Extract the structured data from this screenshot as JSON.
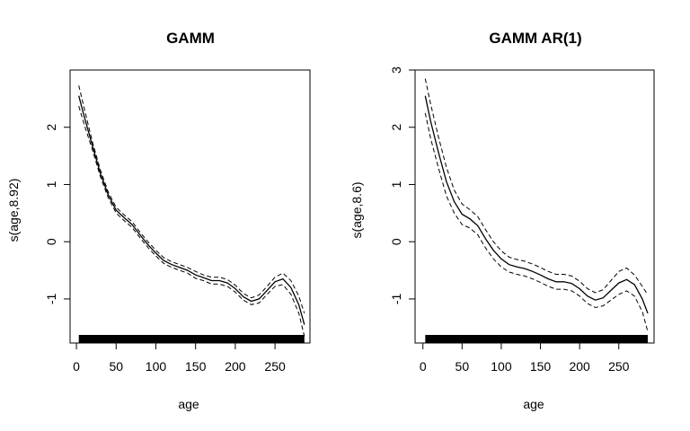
{
  "chart_data": [
    {
      "type": "line",
      "title": "GAMM",
      "xlabel": "age",
      "ylabel": "s(age,8.92)",
      "xlim": [
        -8,
        294
      ],
      "ylim": [
        -1.77,
        3.0
      ],
      "xticks": [
        0,
        50,
        100,
        150,
        200,
        250
      ],
      "yticks": [
        -1,
        0,
        1,
        2
      ],
      "grid": false,
      "x": [
        3,
        10,
        20,
        30,
        40,
        50,
        60,
        70,
        80,
        90,
        100,
        110,
        120,
        130,
        140,
        150,
        160,
        170,
        180,
        190,
        200,
        210,
        220,
        230,
        240,
        250,
        260,
        270,
        280,
        287
      ],
      "series": [
        {
          "values": [
            2.55,
            2.18,
            1.68,
            1.2,
            0.82,
            0.55,
            0.42,
            0.3,
            0.12,
            -0.05,
            -0.2,
            -0.33,
            -0.4,
            -0.45,
            -0.5,
            -0.58,
            -0.63,
            -0.68,
            -0.68,
            -0.72,
            -0.82,
            -0.96,
            -1.04,
            -1.0,
            -0.85,
            -0.7,
            -0.65,
            -0.8,
            -1.1,
            -1.45
          ]
        },
        {
          "values": [
            2.73,
            2.32,
            1.75,
            1.26,
            0.87,
            0.6,
            0.47,
            0.35,
            0.17,
            0.0,
            -0.15,
            -0.28,
            -0.35,
            -0.4,
            -0.45,
            -0.52,
            -0.58,
            -0.62,
            -0.62,
            -0.66,
            -0.76,
            -0.9,
            -0.98,
            -0.93,
            -0.78,
            -0.62,
            -0.55,
            -0.68,
            -0.95,
            -1.25
          ]
        },
        {
          "values": [
            2.37,
            2.04,
            1.61,
            1.14,
            0.77,
            0.5,
            0.37,
            0.25,
            0.07,
            -0.1,
            -0.25,
            -0.38,
            -0.45,
            -0.5,
            -0.55,
            -0.64,
            -0.68,
            -0.74,
            -0.74,
            -0.78,
            -0.88,
            -1.02,
            -1.1,
            -1.07,
            -0.92,
            -0.78,
            -0.75,
            -0.92,
            -1.25,
            -1.65
          ]
        }
      ],
      "rug": [
        3,
        287
      ]
    },
    {
      "type": "line",
      "title": "GAMM AR(1)",
      "xlabel": "age",
      "ylabel": "s(age,8.6)",
      "xlim": [
        -10,
        295
      ],
      "ylim": [
        -1.77,
        3.0
      ],
      "xticks": [
        0,
        50,
        100,
        150,
        200,
        250
      ],
      "yticks": [
        -1,
        0,
        1,
        2,
        3
      ],
      "grid": false,
      "x": [
        3,
        10,
        20,
        30,
        40,
        50,
        60,
        70,
        80,
        90,
        100,
        110,
        120,
        130,
        140,
        150,
        160,
        170,
        180,
        190,
        200,
        210,
        220,
        230,
        240,
        250,
        260,
        270,
        280,
        287
      ],
      "series": [
        {
          "values": [
            2.55,
            2.1,
            1.55,
            1.05,
            0.7,
            0.48,
            0.4,
            0.28,
            0.05,
            -0.15,
            -0.3,
            -0.4,
            -0.44,
            -0.47,
            -0.52,
            -0.58,
            -0.65,
            -0.7,
            -0.7,
            -0.73,
            -0.82,
            -0.95,
            -1.02,
            -0.98,
            -0.85,
            -0.72,
            -0.66,
            -0.75,
            -1.0,
            -1.25
          ]
        },
        {
          "values": [
            2.85,
            2.4,
            1.82,
            1.3,
            0.9,
            0.66,
            0.56,
            0.44,
            0.21,
            0.0,
            -0.16,
            -0.27,
            -0.31,
            -0.34,
            -0.39,
            -0.45,
            -0.52,
            -0.57,
            -0.57,
            -0.6,
            -0.69,
            -0.82,
            -0.89,
            -0.84,
            -0.68,
            -0.52,
            -0.46,
            -0.58,
            -0.78,
            -0.93
          ]
        },
        {
          "values": [
            2.25,
            1.8,
            1.28,
            0.8,
            0.5,
            0.3,
            0.24,
            0.12,
            -0.11,
            -0.3,
            -0.44,
            -0.53,
            -0.57,
            -0.6,
            -0.65,
            -0.71,
            -0.78,
            -0.83,
            -0.83,
            -0.86,
            -0.95,
            -1.08,
            -1.15,
            -1.12,
            -1.02,
            -0.92,
            -0.86,
            -0.95,
            -1.22,
            -1.57
          ]
        }
      ],
      "rug": [
        3,
        287
      ]
    }
  ]
}
